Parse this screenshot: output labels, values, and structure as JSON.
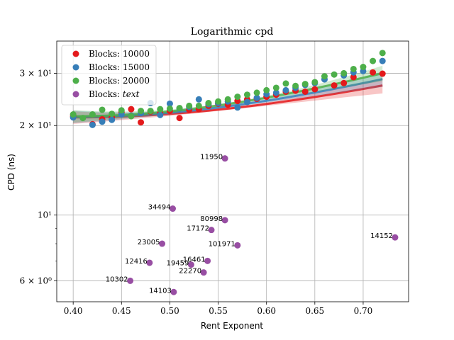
{
  "chart_data": {
    "type": "scatter",
    "title": "Logarithmic cpd",
    "xlabel": "Rent Exponent",
    "ylabel": "CPD (ns)",
    "xlim": [
      0.383,
      0.747
    ],
    "ylim": [
      5.1,
      38.5
    ],
    "yscale": "log",
    "grid": true,
    "legend_position": "top-left",
    "x_ticks": [
      {
        "value": 0.4,
        "label": "0.40"
      },
      {
        "value": 0.45,
        "label": "0.45"
      },
      {
        "value": 0.5,
        "label": "0.50"
      },
      {
        "value": 0.55,
        "label": "0.55"
      },
      {
        "value": 0.6,
        "label": "0.60"
      },
      {
        "value": 0.65,
        "label": "0.65"
      },
      {
        "value": 0.7,
        "label": "0.70"
      }
    ],
    "y_ticks": [
      {
        "value": 6,
        "label": "6 × 10⁰"
      },
      {
        "value": 10,
        "label": "10¹"
      },
      {
        "value": 20,
        "label": "2 × 10¹"
      },
      {
        "value": 30,
        "label": "3 × 10¹"
      }
    ],
    "series": [
      {
        "name": "Blocks: 10000",
        "color": "#e41a1c",
        "points": [
          [
            0.4,
            21.5
          ],
          [
            0.42,
            20.2
          ],
          [
            0.43,
            21.0
          ],
          [
            0.44,
            21.3
          ],
          [
            0.45,
            22.2
          ],
          [
            0.46,
            22.7
          ],
          [
            0.47,
            20.5
          ],
          [
            0.48,
            22.3
          ],
          [
            0.49,
            22.0
          ],
          [
            0.5,
            22.4
          ],
          [
            0.51,
            21.2
          ],
          [
            0.52,
            22.6
          ],
          [
            0.53,
            22.7
          ],
          [
            0.54,
            23.3
          ],
          [
            0.55,
            23.7
          ],
          [
            0.56,
            23.5
          ],
          [
            0.57,
            24.2
          ],
          [
            0.58,
            24.5
          ],
          [
            0.59,
            24.6
          ],
          [
            0.6,
            25.0
          ],
          [
            0.61,
            25.4
          ],
          [
            0.62,
            26.0
          ],
          [
            0.63,
            26.2
          ],
          [
            0.64,
            26.0
          ],
          [
            0.65,
            26.5
          ],
          [
            0.67,
            27.3
          ],
          [
            0.68,
            27.8
          ],
          [
            0.69,
            29.1
          ],
          [
            0.71,
            30.2
          ],
          [
            0.72,
            29.9
          ]
        ]
      },
      {
        "name": "Blocks: 15000",
        "color": "#377eb8",
        "points": [
          [
            0.4,
            21.3
          ],
          [
            0.42,
            20.1
          ],
          [
            0.43,
            20.6
          ],
          [
            0.44,
            20.9
          ],
          [
            0.45,
            21.8
          ],
          [
            0.46,
            21.6
          ],
          [
            0.47,
            22.0
          ],
          [
            0.48,
            23.8
          ],
          [
            0.49,
            21.7
          ],
          [
            0.5,
            23.7
          ],
          [
            0.51,
            22.8
          ],
          [
            0.52,
            23.1
          ],
          [
            0.53,
            24.5
          ],
          [
            0.54,
            23.6
          ],
          [
            0.55,
            23.8
          ],
          [
            0.56,
            24.1
          ],
          [
            0.57,
            23.0
          ],
          [
            0.58,
            24.0
          ],
          [
            0.59,
            24.8
          ],
          [
            0.6,
            25.5
          ],
          [
            0.61,
            25.8
          ],
          [
            0.62,
            26.3
          ],
          [
            0.63,
            26.8
          ],
          [
            0.64,
            27.4
          ],
          [
            0.65,
            27.8
          ],
          [
            0.66,
            28.6
          ],
          [
            0.68,
            29.5
          ],
          [
            0.69,
            30.2
          ],
          [
            0.7,
            30.5
          ],
          [
            0.72,
            33.0
          ]
        ]
      },
      {
        "name": "Blocks: 20000",
        "color": "#4daf4a",
        "points": [
          [
            0.4,
            21.8
          ],
          [
            0.41,
            21.2
          ],
          [
            0.42,
            21.8
          ],
          [
            0.43,
            22.6
          ],
          [
            0.44,
            21.9
          ],
          [
            0.45,
            22.5
          ],
          [
            0.46,
            21.5
          ],
          [
            0.47,
            22.4
          ],
          [
            0.48,
            22.4
          ],
          [
            0.49,
            22.7
          ],
          [
            0.5,
            22.8
          ],
          [
            0.51,
            22.9
          ],
          [
            0.52,
            23.3
          ],
          [
            0.53,
            23.3
          ],
          [
            0.54,
            23.8
          ],
          [
            0.55,
            24.1
          ],
          [
            0.56,
            24.5
          ],
          [
            0.57,
            25.0
          ],
          [
            0.58,
            25.4
          ],
          [
            0.59,
            25.8
          ],
          [
            0.6,
            26.3
          ],
          [
            0.61,
            26.8
          ],
          [
            0.62,
            27.7
          ],
          [
            0.63,
            27.2
          ],
          [
            0.64,
            27.6
          ],
          [
            0.65,
            28.0
          ],
          [
            0.66,
            29.3
          ],
          [
            0.67,
            29.7
          ],
          [
            0.68,
            30.0
          ],
          [
            0.69,
            31.0
          ],
          [
            0.7,
            31.5
          ],
          [
            0.71,
            33.0
          ],
          [
            0.72,
            35.1
          ]
        ]
      },
      {
        "name": "Blocks: text",
        "legend_italic_tail": "text",
        "color": "#984ea3",
        "points": [
          [
            0.557,
            15.5
          ],
          [
            0.503,
            10.5
          ],
          [
            0.557,
            9.6
          ],
          [
            0.543,
            8.9
          ],
          [
            0.57,
            7.9
          ],
          [
            0.492,
            8.0
          ],
          [
            0.733,
            8.4
          ],
          [
            0.479,
            6.9
          ],
          [
            0.539,
            7.0
          ],
          [
            0.522,
            6.8
          ],
          [
            0.535,
            6.4
          ],
          [
            0.459,
            6.0
          ],
          [
            0.504,
            5.5
          ]
        ]
      }
    ],
    "fits": [
      {
        "series": "Blocks: 10000",
        "color": "#e41a1c",
        "x": [
          0.4,
          0.72
        ],
        "a": 21.3,
        "b": 58.5,
        "c": 0.4
      },
      {
        "series": "Blocks: 15000",
        "color": "#377eb8",
        "x": [
          0.4,
          0.72
        ],
        "a": 21.4,
        "b": 71.0,
        "c": 0.4
      },
      {
        "series": "Blocks: 20000",
        "color": "#4daf4a",
        "x": [
          0.4,
          0.72
        ],
        "a": 21.5,
        "b": 83.0,
        "c": 0.4
      }
    ],
    "annotations": [
      {
        "text": "11950",
        "x": 0.557,
        "y": 15.5
      },
      {
        "text": "34494",
        "x": 0.503,
        "y": 10.5
      },
      {
        "text": "80998",
        "x": 0.557,
        "y": 9.6
      },
      {
        "text": "17172",
        "x": 0.543,
        "y": 8.9
      },
      {
        "text": "101971",
        "x": 0.57,
        "y": 7.9
      },
      {
        "text": "23005",
        "x": 0.492,
        "y": 8.0
      },
      {
        "text": "14152",
        "x": 0.733,
        "y": 8.4
      },
      {
        "text": "12416",
        "x": 0.479,
        "y": 6.9
      },
      {
        "text": "16461",
        "x": 0.539,
        "y": 7.0
      },
      {
        "text": "19459",
        "x": 0.522,
        "y": 6.8
      },
      {
        "text": "22270",
        "x": 0.535,
        "y": 6.4
      },
      {
        "text": "10302",
        "x": 0.459,
        "y": 6.0
      },
      {
        "text": "14103",
        "x": 0.504,
        "y": 5.5
      }
    ]
  }
}
